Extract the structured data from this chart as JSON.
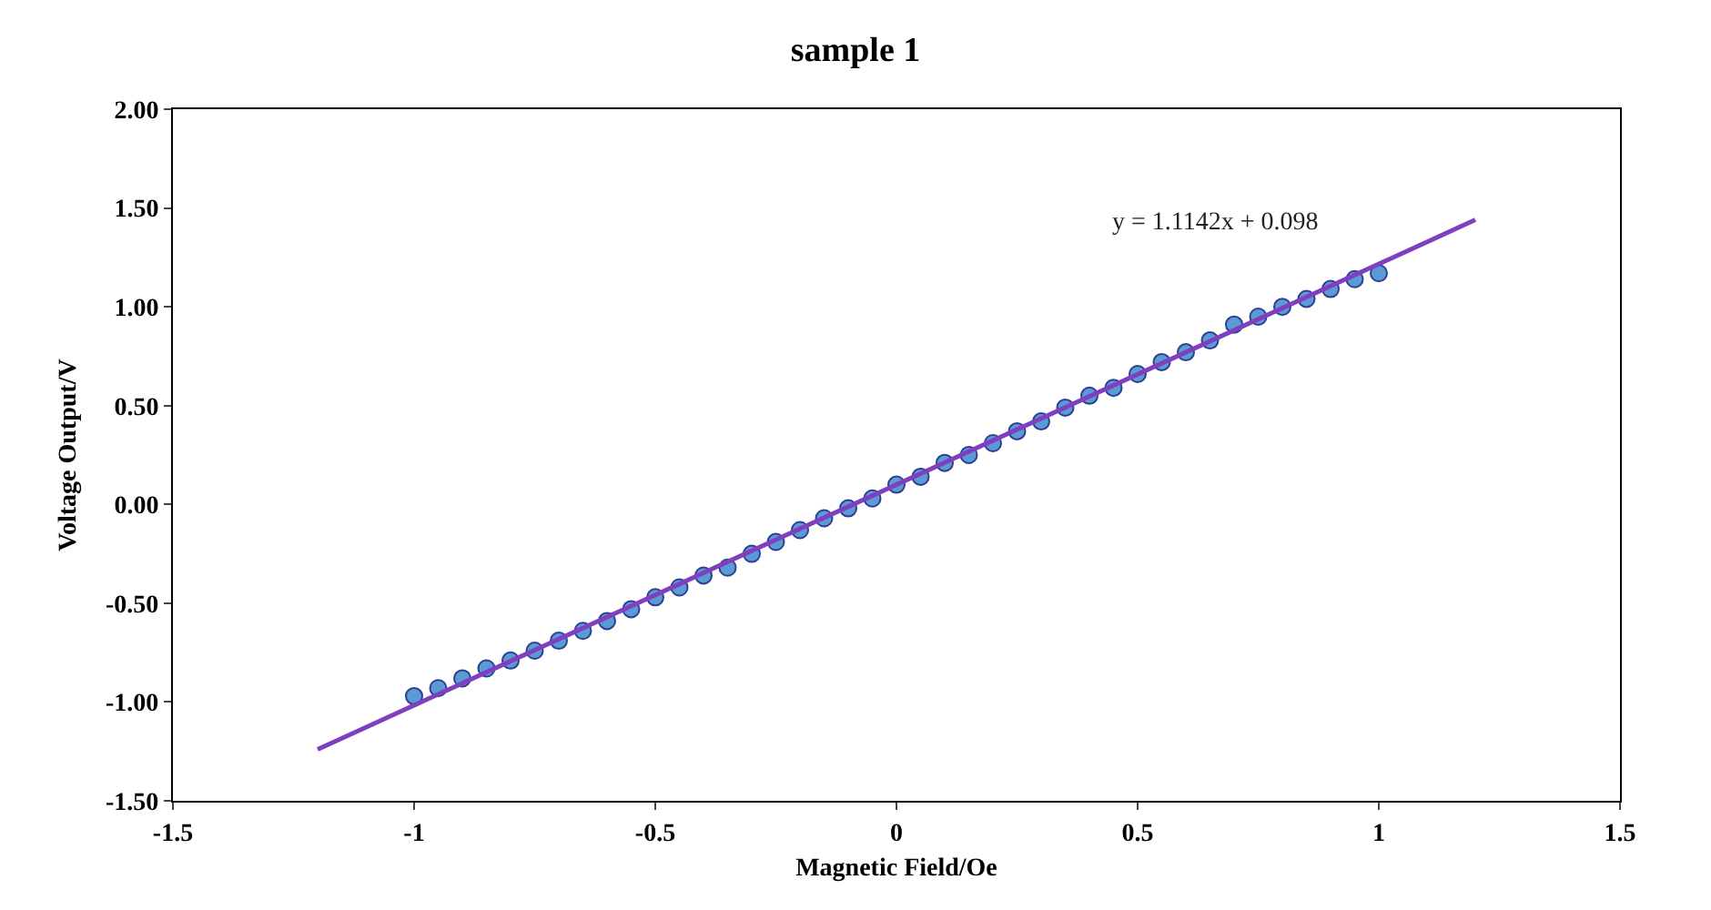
{
  "chart_data": {
    "type": "scatter",
    "title": "sample 1",
    "xlabel": "Magnetic Field/Oe",
    "ylabel": "Voltage Output/V",
    "x": [
      -1,
      -0.95,
      -0.9,
      -0.85,
      -0.8,
      -0.75,
      -0.7,
      -0.65,
      -0.6,
      -0.55,
      -0.5,
      -0.45,
      -0.4,
      -0.35,
      -0.3,
      -0.25,
      -0.2,
      -0.15,
      -0.1,
      -0.05,
      0,
      0.05,
      0.1,
      0.15,
      0.2,
      0.25,
      0.3,
      0.35,
      0.4,
      0.45,
      0.5,
      0.55,
      0.6,
      0.65,
      0.7,
      0.75,
      0.8,
      0.85,
      0.9,
      0.95,
      1
    ],
    "series": [
      {
        "color": "#5b9bd5",
        "marker": "circle",
        "values": [
          -0.97,
          -0.93,
          -0.88,
          -0.83,
          -0.79,
          -0.74,
          -0.69,
          -0.64,
          -0.59,
          -0.53,
          -0.47,
          -0.42,
          -0.36,
          -0.32,
          -0.25,
          -0.19,
          -0.13,
          -0.07,
          -0.02,
          0.03,
          0.1,
          0.14,
          0.21,
          0.25,
          0.31,
          0.37,
          0.42,
          0.49,
          0.55,
          0.59,
          0.66,
          0.72,
          0.77,
          0.83,
          0.91,
          0.95,
          1.0,
          1.04,
          1.09,
          1.14,
          1.17
        ]
      },
      {
        "type": "line",
        "color": "#7f3fbf",
        "marker": "none",
        "x": [
          -1.2,
          1.2
        ],
        "values": [
          -1.24,
          1.44
        ]
      }
    ],
    "annotations": [
      "y = 1.1142x + 0.098"
    ],
    "xlim": [
      -1.5,
      1.5
    ],
    "xticks": [
      -1.5,
      -1,
      -0.5,
      0,
      0.5,
      1,
      1.5
    ],
    "ylim": [
      -1.5,
      2
    ],
    "yticks": [
      {
        "value": -1.5,
        "label": "-1.50"
      },
      {
        "value": -1,
        "label": "-1.00"
      },
      {
        "value": -0.5,
        "label": "-0.50"
      },
      {
        "value": 0,
        "label": "0.00"
      },
      {
        "value": 0.5,
        "label": "0.50"
      },
      {
        "value": 1,
        "label": "1.00"
      },
      {
        "value": 1.5,
        "label": "1.50"
      },
      {
        "value": 2,
        "label": "2.00"
      }
    ],
    "grid": false,
    "legend": false,
    "line_style": "solid"
  }
}
